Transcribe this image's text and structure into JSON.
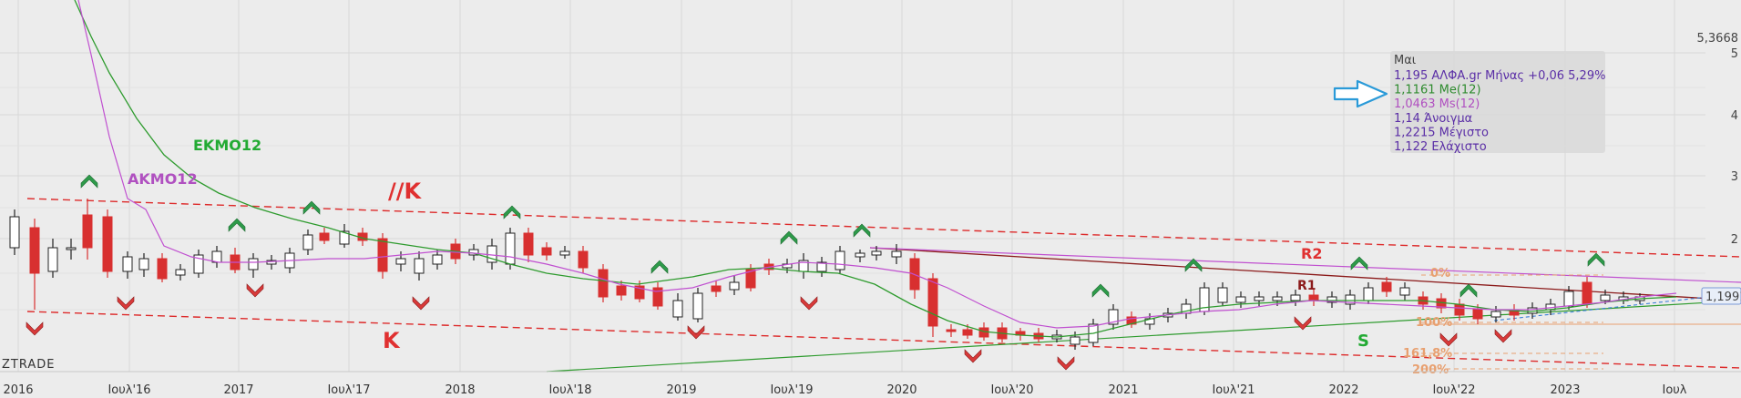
{
  "chart_data": {
    "type": "candlestick",
    "watermark": "ZTRADE",
    "x_ticks": [
      "2016",
      "Ιουλ'16",
      "2017",
      "Ιουλ'17",
      "2018",
      "Ιουλ'18",
      "2019",
      "Ιουλ'19",
      "2020",
      "Ιουλ'20",
      "2021",
      "Ιουλ'21",
      "2022",
      "Ιουλ'22",
      "2023",
      "Ιουλ"
    ],
    "y_ticks": [
      "5",
      "4",
      "3",
      "2"
    ],
    "y_top_label": "5,3668",
    "last_price_label": "1,1991",
    "info_box": {
      "month": "Μαι",
      "lines": [
        {
          "text": "1,195 ΑΛΦΑ.gr Μήνας +0,06 5,29%",
          "color": "#5a2ea6"
        },
        {
          "text": "1,1161 Me(12)",
          "color": "#2e8b2e"
        },
        {
          "text": "1,0463 Ms(12)",
          "color": "#b050c0"
        },
        {
          "text": "1,14 Άνοιγμα",
          "color": "#5a2ea6"
        },
        {
          "text": "1,2215 Μέγιστο",
          "color": "#5a2ea6"
        },
        {
          "text": "1,122 Ελάχιστο",
          "color": "#5a2ea6"
        }
      ]
    },
    "annotations": [
      {
        "text": "ΕΚΜΟ12",
        "color": "#22aa33"
      },
      {
        "text": "ΑΚΜΟ12",
        "color": "#b050c0"
      },
      {
        "text": "//K",
        "color": "#e03030"
      },
      {
        "text": "K",
        "color": "#e03030"
      },
      {
        "text": "R2",
        "color": "#e03030"
      },
      {
        "text": "R1",
        "color": "#8b1a1a"
      },
      {
        "text": "S",
        "color": "#22aa33"
      },
      {
        "text": "0%",
        "color": "#e8a070"
      },
      {
        "text": "100%",
        "color": "#e8a070"
      },
      {
        "text": "161,8%",
        "color": "#e8a070"
      },
      {
        "text": "200%",
        "color": "#e8a070"
      }
    ],
    "colors": {
      "up": "#ffffff",
      "down": "#d83030",
      "ema": "#2e9b2e",
      "sma": "#c050d0",
      "channel": "#dd2a2a",
      "arrow_up": "#2e9b4a",
      "arrow_down": "#d83a3a",
      "pointer": "#2a9ad8"
    }
  }
}
